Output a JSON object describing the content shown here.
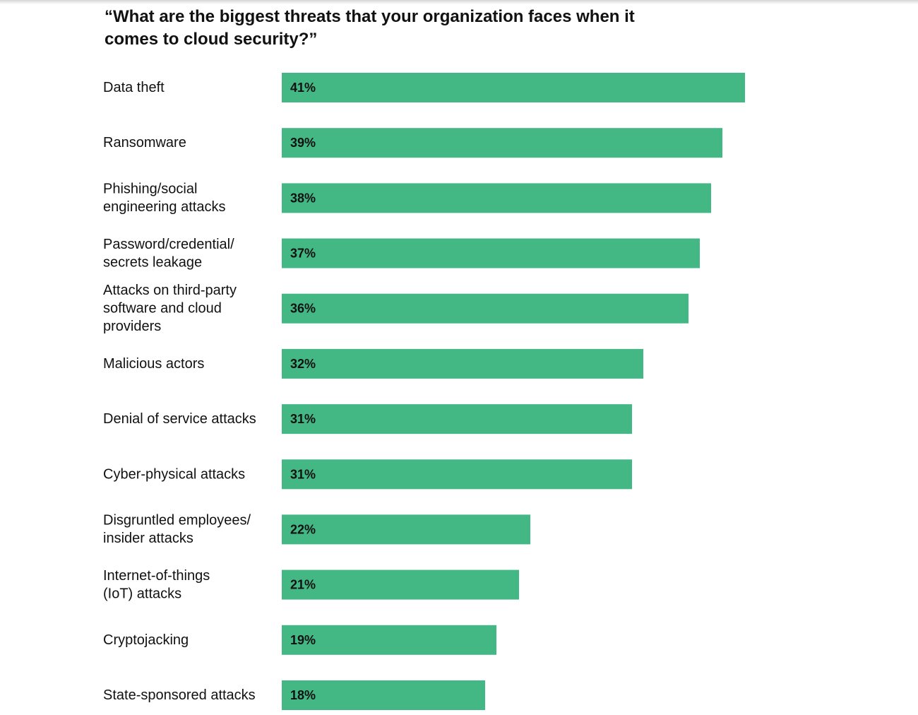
{
  "chart_data": {
    "type": "bar",
    "orientation": "horizontal",
    "title": "“What are the biggest threats that your organization faces when it comes to cloud security?”",
    "categories": [
      [
        "Data theft"
      ],
      [
        "Ransomware"
      ],
      [
        "Phishing/social",
        "engineering attacks"
      ],
      [
        "Password/credential/",
        "secrets leakage"
      ],
      [
        "Attacks on third-party",
        "software and cloud",
        "providers"
      ],
      [
        "Malicious actors"
      ],
      [
        "Denial of service attacks"
      ],
      [
        "Cyber-physical attacks"
      ],
      [
        "Disgruntled employees/",
        "insider attacks"
      ],
      [
        "Internet-of-things",
        "(IoT) attacks"
      ],
      [
        "Cryptojacking"
      ],
      [
        "State-sponsored attacks"
      ]
    ],
    "values": [
      41,
      39,
      38,
      37,
      36,
      32,
      31,
      31,
      22,
      21,
      19,
      18
    ],
    "value_labels": [
      "41%",
      "39%",
      "38%",
      "37%",
      "36%",
      "32%",
      "31%",
      "31%",
      "22%",
      "21%",
      "19%",
      "18%"
    ],
    "unit": "%",
    "bar_color": "#43b885",
    "grid": false,
    "legend": "none",
    "xlabel": "",
    "ylabel": ""
  }
}
